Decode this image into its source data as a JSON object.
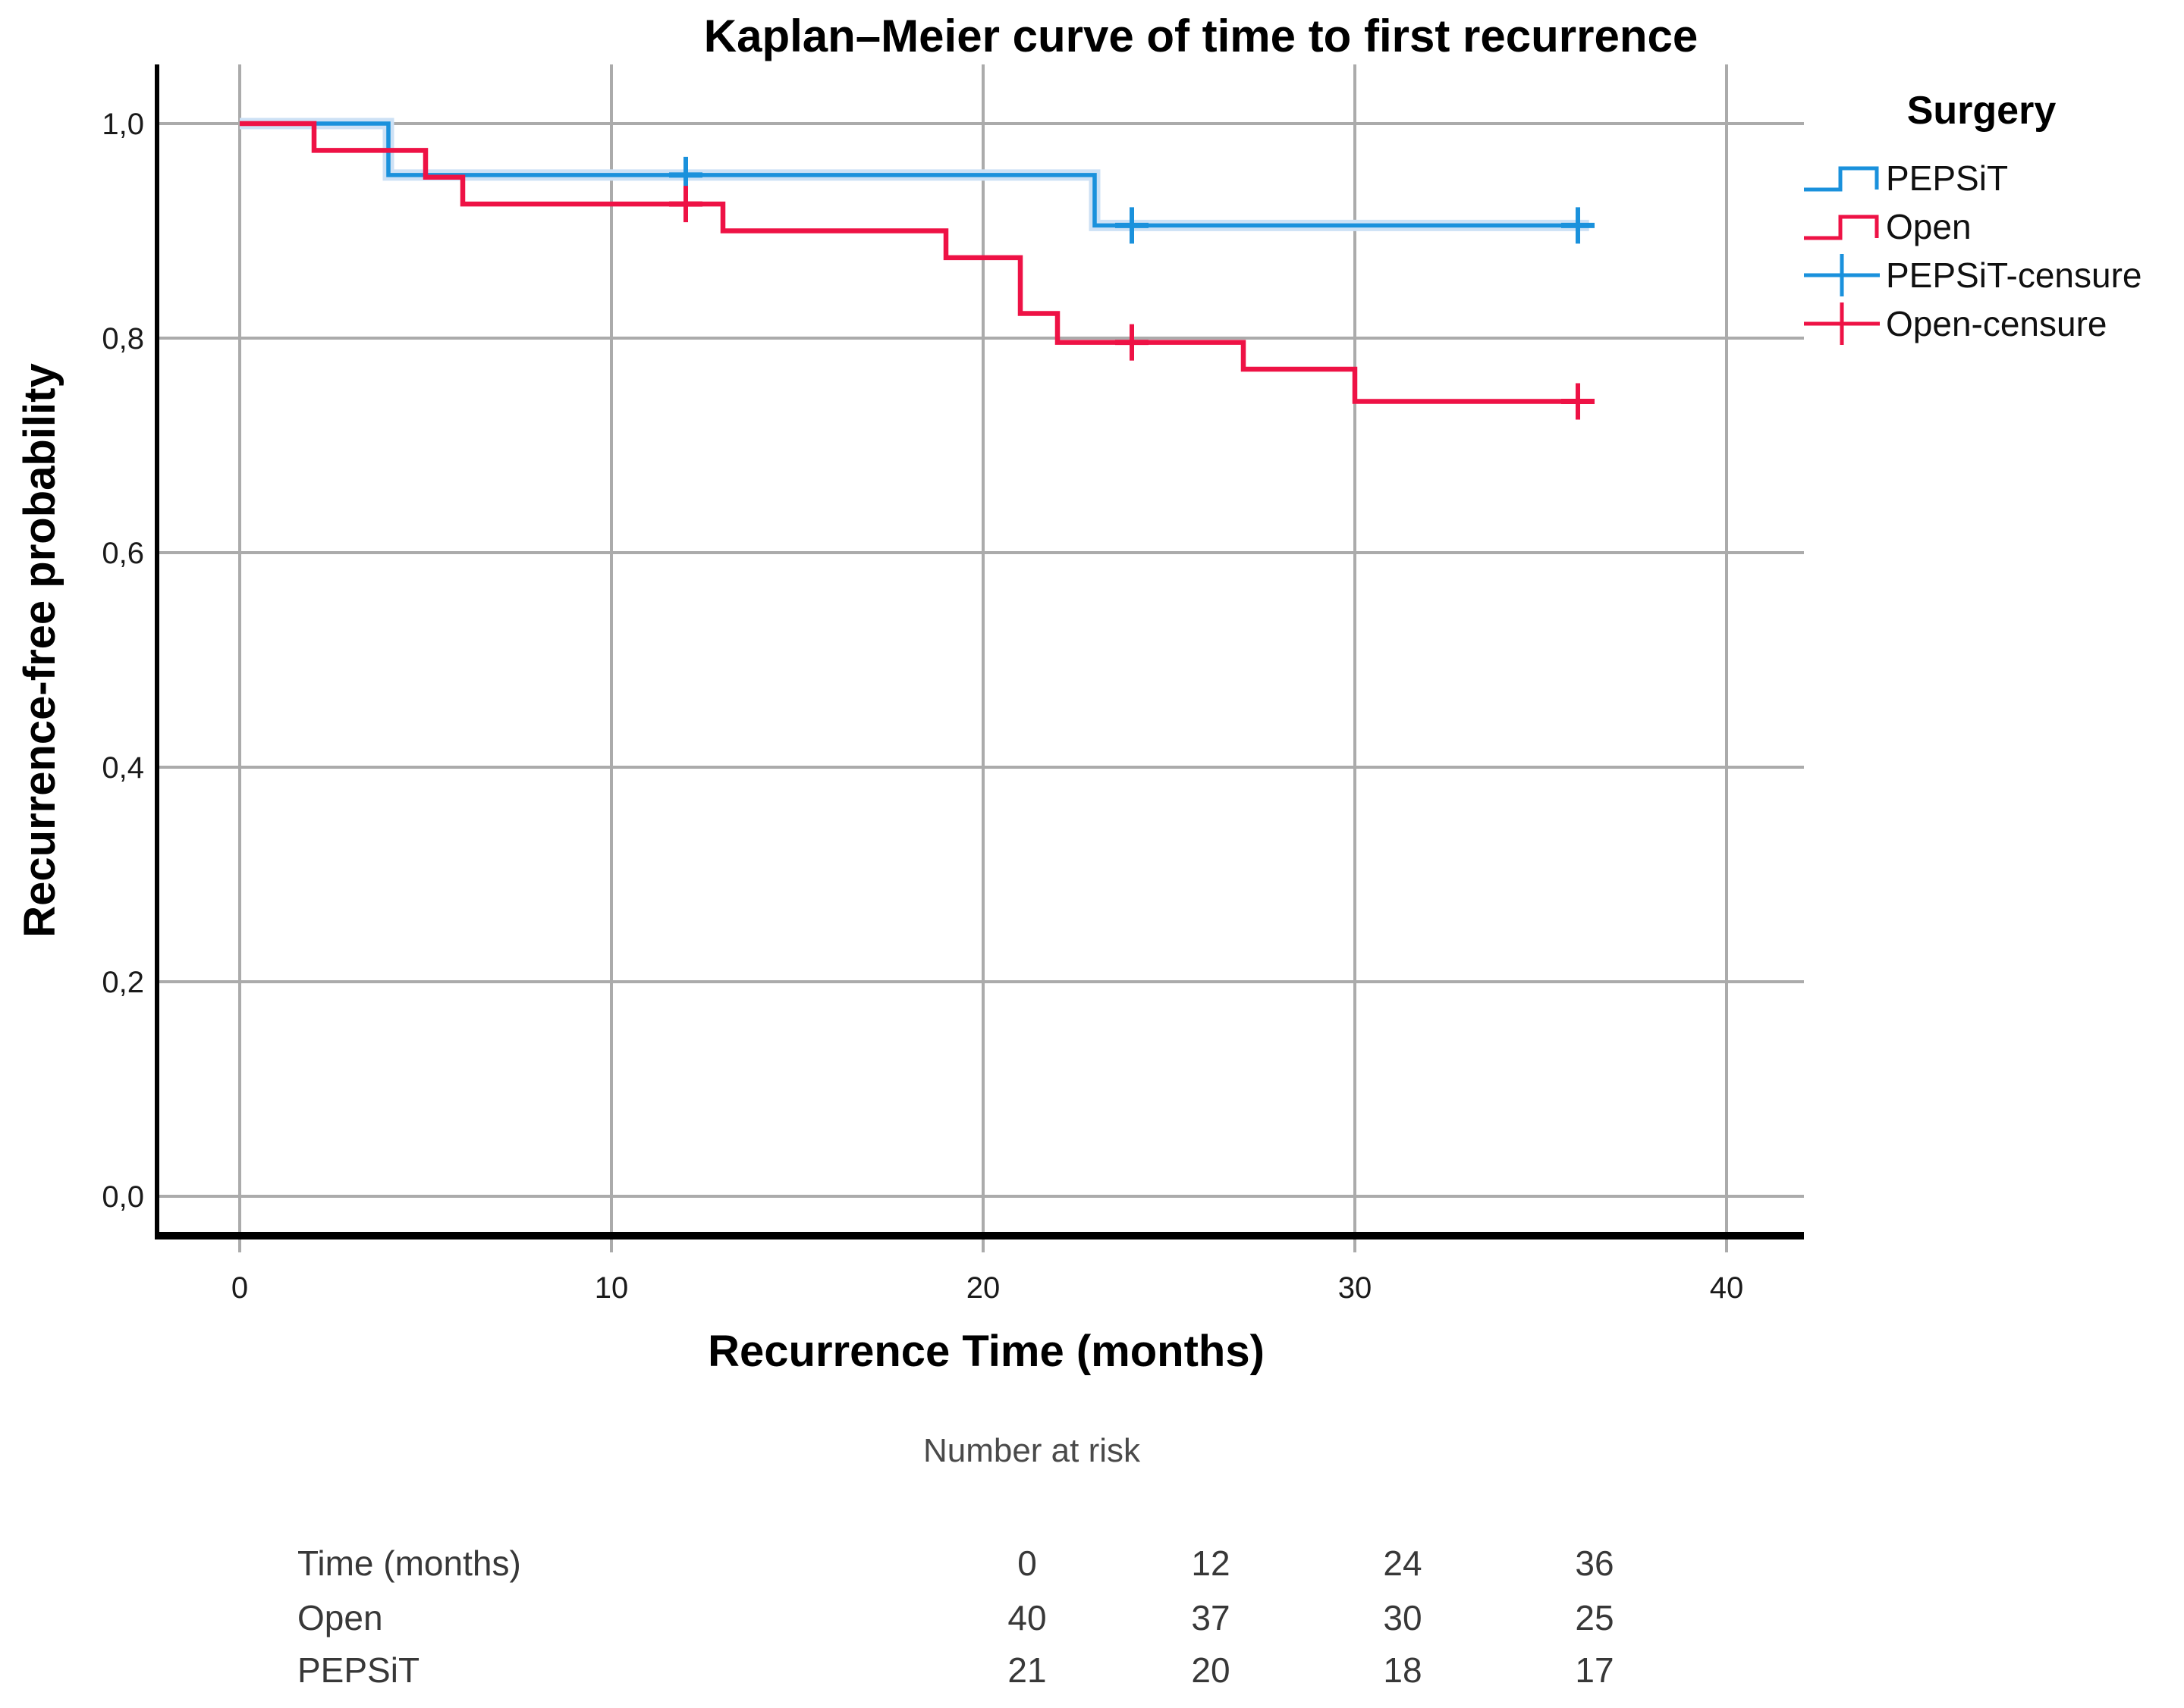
{
  "figure": {
    "title": "Kaplan–Meier curve of time to first recurrence"
  },
  "axes": {
    "x_label": "Recurrence Time (months)",
    "y_label": "Recurrence-free probability",
    "x_tick_labels": [
      "0",
      "10",
      "20",
      "30",
      "40"
    ],
    "y_tick_labels": [
      "1,0",
      "0,8",
      "0,6",
      "0,4",
      "0,2",
      "0,0"
    ]
  },
  "legend": {
    "title": "Surgery",
    "items": [
      {
        "label": "PEPSiT",
        "type": "step",
        "color": "#1a91dc"
      },
      {
        "label": "Open",
        "type": "step",
        "color": "#ee1245"
      },
      {
        "label": "PEPSiT-censure",
        "type": "censor",
        "color": "#1a91dc"
      },
      {
        "label": "Open-censure",
        "type": "censor",
        "color": "#ee1245"
      }
    ]
  },
  "chart_data": {
    "type": "line",
    "variant": "kaplan_meier_step",
    "title": "Kaplan–Meier curve of time to first recurrence",
    "xlabel": "Recurrence Time (months)",
    "ylabel": "Recurrence-free probability",
    "xlim": [
      -2.2,
      42.1
    ],
    "ylim": [
      -0.035,
      1.055
    ],
    "x_ticks": [
      0,
      10,
      20,
      30,
      40
    ],
    "y_ticks": [
      1.0,
      0.8,
      0.6,
      0.4,
      0.2,
      0.0
    ],
    "y_tick_display": [
      "1,0",
      "0,8",
      "0,6",
      "0,4",
      "0,2",
      "0,0"
    ],
    "grid": true,
    "legend_position": "right",
    "series": [
      {
        "name": "PEPSiT",
        "color": "#1a91dc",
        "halo_color": "#cde1f5",
        "start": [
          0,
          1.0
        ],
        "steps": [
          [
            4,
            0.952
          ],
          [
            23,
            0.905
          ]
        ],
        "end_x": 36.3,
        "censored": [
          [
            12,
            0.952
          ],
          [
            24,
            0.905
          ],
          [
            36,
            0.905
          ]
        ]
      },
      {
        "name": "Open",
        "color": "#ee1245",
        "halo_color": null,
        "start": [
          0,
          1.0
        ],
        "steps": [
          [
            2,
            0.975
          ],
          [
            5,
            0.95
          ],
          [
            6,
            0.925
          ],
          [
            13,
            0.9
          ],
          [
            19,
            0.875
          ],
          [
            21,
            0.823
          ],
          [
            22,
            0.796
          ],
          [
            27,
            0.771
          ],
          [
            30,
            0.741
          ]
        ],
        "end_x": 36.3,
        "censored": [
          [
            12,
            0.925
          ],
          [
            24,
            0.796
          ],
          [
            36,
            0.741
          ]
        ]
      }
    ]
  },
  "risk_table": {
    "header": "Number at risk",
    "time_row": {
      "label": "Time (months)",
      "values": [
        "0",
        "12",
        "24",
        "36"
      ]
    },
    "group_rows": [
      {
        "label": "Open",
        "values": [
          "40",
          "37",
          "30",
          "25"
        ]
      },
      {
        "label": "PEPSiT",
        "values": [
          "21",
          "20",
          "18",
          "17"
        ]
      }
    ]
  },
  "colors": {
    "pepsit_blue": "#1a91dc",
    "pepsit_halo": "#cde1f5",
    "open_red": "#ee1245",
    "gridline_gray": "#ababab",
    "axis_black": "#000000"
  }
}
